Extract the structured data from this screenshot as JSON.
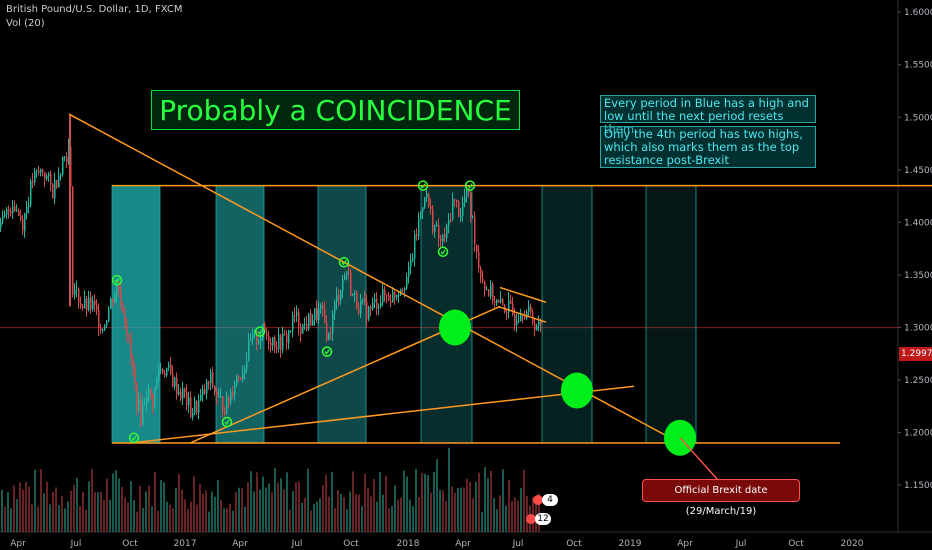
{
  "header": {
    "symbol_line": "British Pound/U.S. Dollar, 1D, FXCM",
    "volume_line": "Vol (20)"
  },
  "annotations": {
    "title": "Probably a COINCIDENCE",
    "note1": "Every period in Blue has a high and low until the next period resets them",
    "note2": "Only the 4th period has two highs, which also marks them as the top resistance post-Brexit",
    "callout": "Official Brexit date (29/March/19)",
    "badge_earnings": "4",
    "badge_events": "12"
  },
  "colors": {
    "background": "#000000",
    "resistance_line": "#ff9a1f",
    "period_fill": "#22b5b5",
    "circle": "#00ef1a",
    "price_tag": "#c01818",
    "up_candle": "#22b5a0",
    "down_candle": "#d24a4a"
  },
  "chart_data": {
    "type": "candlestick",
    "title": "British Pound/U.S. Dollar, 1D, FXCM",
    "x_ticks": [
      "Apr",
      "Jul",
      "Oct",
      "2017",
      "Apr",
      "Jul",
      "Oct",
      "2018",
      "Apr",
      "Jul",
      "Oct",
      "2019",
      "Apr",
      "Jul",
      "Oct",
      "2020"
    ],
    "y_ticks": [
      "1.65000",
      "1.60000",
      "1.55000",
      "1.50000",
      "1.45000",
      "1.40000",
      "1.35000",
      "1.30000",
      "1.25000",
      "1.20000",
      "1.15000"
    ],
    "ylim": [
      1.11,
      1.68
    ],
    "last_price": "1.29979",
    "price_path": [
      [
        0,
        1.395
      ],
      [
        12,
        1.42
      ],
      [
        22,
        1.4
      ],
      [
        32,
        1.44
      ],
      [
        42,
        1.45
      ],
      [
        52,
        1.43
      ],
      [
        62,
        1.46
      ],
      [
        69,
        1.47
      ],
      [
        72,
        1.34
      ],
      [
        82,
        1.32
      ],
      [
        92,
        1.32
      ],
      [
        102,
        1.3
      ],
      [
        112,
        1.33
      ],
      [
        117,
        1.34
      ],
      [
        124,
        1.31
      ],
      [
        130,
        1.27
      ],
      [
        136,
        1.23
      ],
      [
        140,
        1.215
      ],
      [
        146,
        1.24
      ],
      [
        152,
        1.23
      ],
      [
        158,
        1.26
      ],
      [
        166,
        1.26
      ],
      [
        172,
        1.25
      ],
      [
        178,
        1.24
      ],
      [
        184,
        1.235
      ],
      [
        190,
        1.22
      ],
      [
        196,
        1.225
      ],
      [
        202,
        1.235
      ],
      [
        210,
        1.25
      ],
      [
        218,
        1.23
      ],
      [
        226,
        1.225
      ],
      [
        234,
        1.25
      ],
      [
        242,
        1.26
      ],
      [
        250,
        1.285
      ],
      [
        256,
        1.29
      ],
      [
        262,
        1.295
      ],
      [
        270,
        1.29
      ],
      [
        278,
        1.285
      ],
      [
        286,
        1.29
      ],
      [
        294,
        1.31
      ],
      [
        302,
        1.3
      ],
      [
        312,
        1.31
      ],
      [
        320,
        1.315
      ],
      [
        328,
        1.29
      ],
      [
        334,
        1.32
      ],
      [
        340,
        1.34
      ],
      [
        346,
        1.355
      ],
      [
        352,
        1.33
      ],
      [
        360,
        1.32
      ],
      [
        368,
        1.315
      ],
      [
        376,
        1.325
      ],
      [
        384,
        1.33
      ],
      [
        392,
        1.33
      ],
      [
        400,
        1.34
      ],
      [
        408,
        1.35
      ],
      [
        416,
        1.39
      ],
      [
        424,
        1.43
      ],
      [
        432,
        1.4
      ],
      [
        440,
        1.38
      ],
      [
        446,
        1.39
      ],
      [
        452,
        1.42
      ],
      [
        460,
        1.41
      ],
      [
        466,
        1.43
      ],
      [
        472,
        1.4
      ],
      [
        478,
        1.36
      ],
      [
        484,
        1.34
      ],
      [
        492,
        1.33
      ],
      [
        498,
        1.32
      ],
      [
        506,
        1.32
      ],
      [
        514,
        1.31
      ],
      [
        522,
        1.32
      ],
      [
        530,
        1.31
      ],
      [
        538,
        1.3
      ]
    ],
    "periods": [
      {
        "x_start": 112,
        "x_end": 160,
        "high": 1.435,
        "low": 1.19
      },
      {
        "x_start": 216,
        "x_end": 264,
        "high": 1.435,
        "low": 1.19
      },
      {
        "x_start": 318,
        "x_end": 366,
        "high": 1.435,
        "low": 1.19
      },
      {
        "x_start": 421,
        "x_end": 472,
        "high": 1.435,
        "low": 1.19
      },
      {
        "x_start": 542,
        "x_end": 592,
        "high": 1.435,
        "low": 1.19
      },
      {
        "x_start": 646,
        "x_end": 696,
        "high": 1.435,
        "low": 1.19
      }
    ],
    "lines": [
      {
        "from": [
          112,
          1.435
        ],
        "to": [
          932,
          1.435
        ]
      },
      {
        "from": [
          112,
          1.19
        ],
        "to": [
          840,
          1.19
        ]
      },
      {
        "from": [
          69,
          1.503
        ],
        "to": [
          680,
          1.19
        ]
      },
      {
        "from": [
          130,
          1.19
        ],
        "to": [
          634,
          1.244
        ]
      },
      {
        "from": [
          190,
          1.19
        ],
        "to": [
          500,
          1.32
        ]
      },
      {
        "from": [
          498,
          1.32
        ],
        "to": [
          546,
          1.305
        ]
      },
      {
        "from": [
          500,
          1.338
        ],
        "to": [
          546,
          1.324
        ]
      }
    ],
    "markers": [
      {
        "x": 117,
        "y": 1.345
      },
      {
        "x": 134,
        "y": 1.195
      },
      {
        "x": 227,
        "y": 1.21
      },
      {
        "x": 260,
        "y": 1.296
      },
      {
        "x": 327,
        "y": 1.277
      },
      {
        "x": 344,
        "y": 1.362
      },
      {
        "x": 423,
        "y": 1.435
      },
      {
        "x": 443,
        "y": 1.372
      },
      {
        "x": 470,
        "y": 1.435
      }
    ],
    "circles": [
      {
        "x": 455,
        "y": 1.3
      },
      {
        "x": 577,
        "y": 1.24
      },
      {
        "x": 680,
        "y": 1.195
      }
    ]
  }
}
